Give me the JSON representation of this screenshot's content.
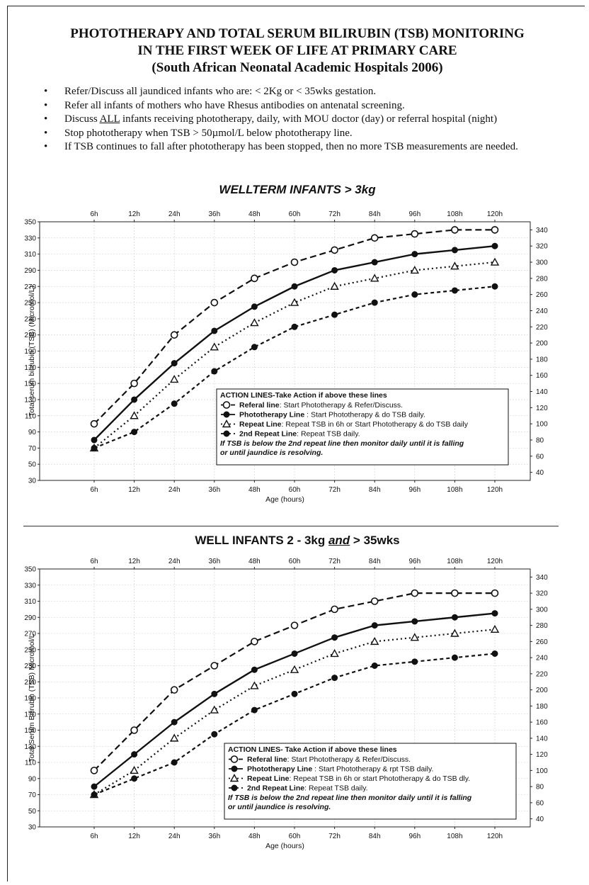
{
  "header": {
    "title_lines": [
      "PHOTOTHERAPY AND TOTAL SERUM BILIRUBIN (TSB) MONITORING",
      "IN THE FIRST WEEK OF LIFE AT PRIMARY CARE",
      "(South African Neonatal Academic Hospitals 2006)"
    ]
  },
  "bullets": [
    {
      "symbol": "•",
      "text": "Refer/Discuss all jaundiced infants who are: < 2Kg or < 35wks gestation."
    },
    {
      "symbol": "•",
      "text": "Refer all infants of mothers who have Rhesus antibodies on antenatal screening."
    },
    {
      "symbol": "•",
      "pre": "Discuss ",
      "u": "ALL",
      "post": " infants receiving phototherapy, daily, with MOU doctor (day) or  referral hospital (night)"
    },
    {
      "symbol": "•",
      "text": "Stop phototherapy when TSB > 50µmol/L below phototherapy line."
    },
    {
      "symbol": "•",
      "text": "If TSB continues to fall after phototherapy has been stopped, then no more TSB measurements are needed."
    }
  ],
  "chart_data": [
    {
      "type": "line",
      "title": "WELLTERM INFANTS > 3kg",
      "xlabel": "Age (hours)",
      "ylabel": "Total serum bilirubin (TSB) (Micromol/L)",
      "categories": [
        "6h",
        "12h",
        "24h",
        "36h",
        "48h",
        "60h",
        "72h",
        "84h",
        "96h",
        "108h",
        "120h"
      ],
      "ylim": [
        30,
        350
      ],
      "left_ticks": [
        30,
        50,
        70,
        90,
        110,
        130,
        150,
        170,
        190,
        210,
        230,
        250,
        270,
        290,
        310,
        330,
        350
      ],
      "right_ticks": [
        40,
        60,
        80,
        100,
        120,
        140,
        160,
        180,
        200,
        220,
        240,
        260,
        280,
        300,
        320,
        340
      ],
      "grid": true,
      "series": [
        {
          "name": "Referal line",
          "marker": "open-circle",
          "style": "dashed",
          "values": [
            100,
            150,
            210,
            250,
            280,
            300,
            315,
            330,
            335,
            340,
            340
          ]
        },
        {
          "name": "Phototherapy Line",
          "marker": "filled-circle",
          "style": "solid",
          "values": [
            80,
            130,
            175,
            215,
            245,
            270,
            290,
            300,
            310,
            315,
            320
          ]
        },
        {
          "name": "Repeat Line",
          "marker": "open-triangle",
          "style": "dotted",
          "values": [
            70,
            110,
            155,
            195,
            225,
            250,
            270,
            280,
            290,
            295,
            300
          ]
        },
        {
          "name": "2nd Repeat Line",
          "marker": "filled-circle",
          "style": "short-dashed",
          "values": [
            70,
            90,
            125,
            165,
            195,
            220,
            235,
            250,
            260,
            265,
            270
          ]
        }
      ],
      "legend": {
        "position": "bottom-right",
        "header": "ACTION LINES-Take Action if above these lines",
        "items": [
          {
            "label": "Referal line",
            "desc": ": Start Phototherapy &  Refer/Discuss."
          },
          {
            "label": "Phototherapy Line",
            "desc": " : Start Phototherapy & do TSB daily."
          },
          {
            "label": "Repeat Line",
            "desc": ": Repeat TSB in 6h or Start Phototherapy & do TSB daily"
          },
          {
            "label": "2nd Repeat Line",
            "desc": ": Repeat TSB daily."
          }
        ],
        "footer_lines": [
          "If TSB is below the 2nd repeat line then monitor daily until it is falling",
          "or until jaundice is resolving."
        ]
      }
    },
    {
      "type": "line",
      "title_parts": {
        "pre": "WELL INFANTS 2 - 3kg ",
        "u": "and",
        "post": " > 35wks"
      },
      "xlabel": "Age (hours)",
      "ylabel": "Total Serum Bilirubin (TSB) Micromol/L",
      "categories": [
        "6h",
        "12h",
        "24h",
        "36h",
        "48h",
        "60h",
        "72h",
        "84h",
        "96h",
        "108h",
        "120h"
      ],
      "ylim": [
        30,
        350
      ],
      "left_ticks": [
        30,
        50,
        70,
        90,
        110,
        130,
        150,
        170,
        190,
        210,
        230,
        250,
        270,
        290,
        310,
        330,
        350
      ],
      "right_ticks": [
        40,
        60,
        80,
        100,
        120,
        140,
        160,
        180,
        200,
        220,
        240,
        260,
        280,
        300,
        320,
        340
      ],
      "grid": true,
      "series": [
        {
          "name": "Referal line",
          "marker": "open-circle",
          "style": "dashed",
          "values": [
            100,
            150,
            200,
            230,
            260,
            280,
            300,
            310,
            320,
            320,
            320
          ]
        },
        {
          "name": "Phototherapy Line",
          "marker": "filled-circle",
          "style": "solid",
          "values": [
            80,
            120,
            160,
            195,
            225,
            245,
            265,
            280,
            285,
            290,
            295
          ]
        },
        {
          "name": "Repeat Line",
          "marker": "open-triangle",
          "style": "dotted",
          "values": [
            70,
            100,
            140,
            175,
            205,
            225,
            245,
            260,
            265,
            270,
            275
          ]
        },
        {
          "name": "2nd Repeat Line",
          "marker": "filled-circle",
          "style": "short-dashed",
          "values": [
            70,
            90,
            110,
            145,
            175,
            195,
            215,
            230,
            235,
            240,
            245
          ]
        }
      ],
      "legend": {
        "position": "bottom-right",
        "header": "ACTION LINES- Take Action if above these lines",
        "items": [
          {
            "label": "Referal line",
            "desc": ":  Start Phototherapy & Refer/Discuss."
          },
          {
            "label": "Phototherapy Line",
            "desc": " : Start Phototherapy & rpt TSB daily."
          },
          {
            "label": "Repeat Line",
            "desc": ": Repeat TSB in 6h or start Phototherapy & do TSB dly."
          },
          {
            "label": "2nd Repeat Line",
            "desc": ": Repeat TSB daily."
          }
        ],
        "footer_lines": [
          "If TSB is below the 2nd repeat line then monitor daily until it is falling",
          "or until jaundice is resolving."
        ]
      }
    }
  ]
}
